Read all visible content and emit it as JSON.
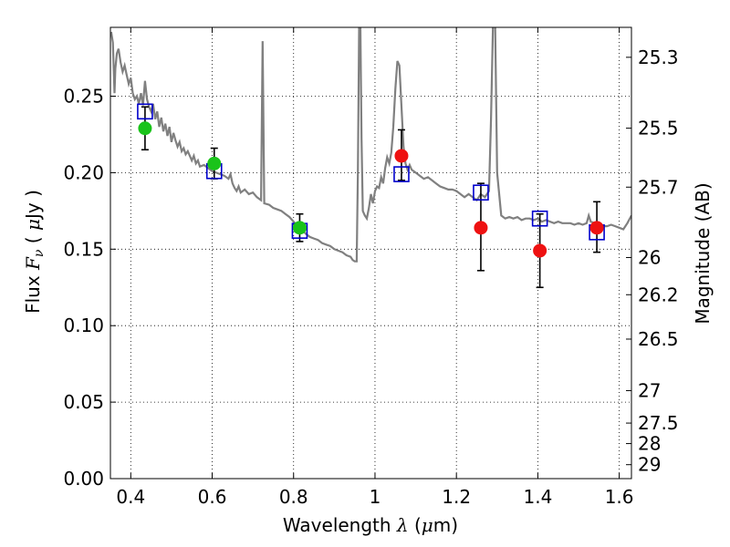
{
  "chart_data": {
    "type": "scatter",
    "title": "",
    "xlabel": {
      "prefix": "Wavelength  ",
      "symbol": "λ",
      "open": " (",
      "unit_symbol": "μ",
      "unit": "m",
      "close": ")"
    },
    "ylabel": {
      "prefix": "Flux  ",
      "symbol": "F",
      "subscript": "ν",
      "open": "  ( ",
      "unit_symbol": "μ",
      "unit": "Jy",
      "close": " )"
    },
    "y2label": "Magnitude (AB)",
    "xlim": [
      0.35,
      1.63
    ],
    "ylim": [
      0.0,
      0.295
    ],
    "xticks": [
      0.4,
      0.6,
      0.8,
      1.0,
      1.2,
      1.4,
      1.6
    ],
    "xtick_labels": [
      "0.4",
      "0.6",
      "0.8",
      "1",
      "1.2",
      "1.4",
      "1.6"
    ],
    "yticks": [
      0.0,
      0.05,
      0.1,
      0.15,
      0.2,
      0.25
    ],
    "ytick_labels": [
      "0.00",
      "0.05",
      "0.10",
      "0.15",
      "0.20",
      "0.25"
    ],
    "mag_ticks": [
      25.3,
      25.5,
      25.7,
      26,
      26.2,
      26.5,
      27,
      27.5,
      28,
      29
    ],
    "mag_tick_labels": [
      "25.3",
      "25.5",
      "25.7",
      "26",
      "26.2",
      "26.5",
      "27",
      "27.5",
      "28",
      "29"
    ],
    "grid": true,
    "colors": {
      "spectrum": "#808080",
      "model": "#0000cc",
      "green": "#1ac31a",
      "red": "#ee1111",
      "errorbar": "#000000"
    },
    "series": [
      {
        "kind": "spectrum",
        "points": [
          [
            0.352,
            0.292
          ],
          [
            0.356,
            0.285
          ],
          [
            0.36,
            0.252
          ],
          [
            0.362,
            0.268
          ],
          [
            0.366,
            0.278
          ],
          [
            0.37,
            0.281
          ],
          [
            0.375,
            0.272
          ],
          [
            0.38,
            0.266
          ],
          [
            0.385,
            0.27
          ],
          [
            0.39,
            0.264
          ],
          [
            0.395,
            0.258
          ],
          [
            0.4,
            0.262
          ],
          [
            0.405,
            0.252
          ],
          [
            0.41,
            0.248
          ],
          [
            0.415,
            0.25
          ],
          [
            0.42,
            0.245
          ],
          [
            0.425,
            0.252
          ],
          [
            0.43,
            0.244
          ],
          [
            0.435,
            0.26
          ],
          [
            0.44,
            0.248
          ],
          [
            0.445,
            0.243
          ],
          [
            0.45,
            0.24
          ],
          [
            0.455,
            0.245
          ],
          [
            0.46,
            0.235
          ],
          [
            0.465,
            0.24
          ],
          [
            0.47,
            0.23
          ],
          [
            0.475,
            0.236
          ],
          [
            0.48,
            0.227
          ],
          [
            0.485,
            0.232
          ],
          [
            0.49,
            0.224
          ],
          [
            0.495,
            0.23
          ],
          [
            0.5,
            0.22
          ],
          [
            0.505,
            0.226
          ],
          [
            0.51,
            0.221
          ],
          [
            0.515,
            0.217
          ],
          [
            0.52,
            0.22
          ],
          [
            0.525,
            0.214
          ],
          [
            0.53,
            0.216
          ],
          [
            0.535,
            0.212
          ],
          [
            0.54,
            0.214
          ],
          [
            0.545,
            0.211
          ],
          [
            0.55,
            0.208
          ],
          [
            0.555,
            0.211
          ],
          [
            0.56,
            0.206
          ],
          [
            0.565,
            0.208
          ],
          [
            0.57,
            0.204
          ],
          [
            0.58,
            0.205
          ],
          [
            0.59,
            0.203
          ],
          [
            0.6,
            0.201
          ],
          [
            0.61,
            0.2
          ],
          [
            0.62,
            0.199
          ],
          [
            0.63,
            0.198
          ],
          [
            0.64,
            0.196
          ],
          [
            0.645,
            0.199
          ],
          [
            0.65,
            0.193
          ],
          [
            0.655,
            0.19
          ],
          [
            0.66,
            0.188
          ],
          [
            0.665,
            0.191
          ],
          [
            0.67,
            0.187
          ],
          [
            0.68,
            0.189
          ],
          [
            0.69,
            0.186
          ],
          [
            0.7,
            0.187
          ],
          [
            0.71,
            0.184
          ],
          [
            0.72,
            0.182
          ],
          [
            0.724,
            0.286
          ],
          [
            0.728,
            0.18
          ],
          [
            0.74,
            0.179
          ],
          [
            0.75,
            0.177
          ],
          [
            0.76,
            0.176
          ],
          [
            0.77,
            0.175
          ],
          [
            0.78,
            0.173
          ],
          [
            0.79,
            0.171
          ],
          [
            0.8,
            0.168
          ],
          [
            0.81,
            0.165
          ],
          [
            0.82,
            0.163
          ],
          [
            0.83,
            0.16
          ],
          [
            0.84,
            0.158
          ],
          [
            0.85,
            0.157
          ],
          [
            0.86,
            0.156
          ],
          [
            0.87,
            0.154
          ],
          [
            0.88,
            0.153
          ],
          [
            0.89,
            0.152
          ],
          [
            0.9,
            0.15
          ],
          [
            0.91,
            0.149
          ],
          [
            0.92,
            0.148
          ],
          [
            0.93,
            0.146
          ],
          [
            0.94,
            0.145
          ],
          [
            0.945,
            0.143
          ],
          [
            0.95,
            0.142
          ],
          [
            0.955,
            0.142
          ],
          [
            0.958,
            0.2
          ],
          [
            0.961,
            0.298
          ],
          [
            0.964,
            0.298
          ],
          [
            0.967,
            0.222
          ],
          [
            0.97,
            0.175
          ],
          [
            0.975,
            0.172
          ],
          [
            0.98,
            0.17
          ],
          [
            0.985,
            0.177
          ],
          [
            0.99,
            0.186
          ],
          [
            0.995,
            0.18
          ],
          [
            1.0,
            0.188
          ],
          [
            1.005,
            0.191
          ],
          [
            1.01,
            0.19
          ],
          [
            1.015,
            0.197
          ],
          [
            1.02,
            0.193
          ],
          [
            1.025,
            0.203
          ],
          [
            1.03,
            0.21
          ],
          [
            1.035,
            0.206
          ],
          [
            1.04,
            0.213
          ],
          [
            1.045,
            0.23
          ],
          [
            1.05,
            0.255
          ],
          [
            1.055,
            0.273
          ],
          [
            1.06,
            0.27
          ],
          [
            1.065,
            0.243
          ],
          [
            1.07,
            0.217
          ],
          [
            1.075,
            0.206
          ],
          [
            1.08,
            0.202
          ],
          [
            1.085,
            0.205
          ],
          [
            1.09,
            0.202
          ],
          [
            1.1,
            0.2
          ],
          [
            1.11,
            0.198
          ],
          [
            1.12,
            0.196
          ],
          [
            1.13,
            0.197
          ],
          [
            1.14,
            0.195
          ],
          [
            1.15,
            0.193
          ],
          [
            1.16,
            0.191
          ],
          [
            1.17,
            0.19
          ],
          [
            1.18,
            0.189
          ],
          [
            1.19,
            0.189
          ],
          [
            1.2,
            0.188
          ],
          [
            1.21,
            0.186
          ],
          [
            1.22,
            0.184
          ],
          [
            1.23,
            0.186
          ],
          [
            1.24,
            0.184
          ],
          [
            1.25,
            0.182
          ],
          [
            1.26,
            0.186
          ],
          [
            1.27,
            0.184
          ],
          [
            1.28,
            0.188
          ],
          [
            1.285,
            0.235
          ],
          [
            1.29,
            0.298
          ],
          [
            1.295,
            0.298
          ],
          [
            1.3,
            0.2
          ],
          [
            1.31,
            0.172
          ],
          [
            1.32,
            0.17
          ],
          [
            1.33,
            0.171
          ],
          [
            1.34,
            0.17
          ],
          [
            1.35,
            0.171
          ],
          [
            1.36,
            0.169
          ],
          [
            1.37,
            0.17
          ],
          [
            1.38,
            0.17
          ],
          [
            1.39,
            0.169
          ],
          [
            1.4,
            0.17
          ],
          [
            1.41,
            0.168
          ],
          [
            1.42,
            0.169
          ],
          [
            1.43,
            0.168
          ],
          [
            1.44,
            0.167
          ],
          [
            1.45,
            0.168
          ],
          [
            1.46,
            0.167
          ],
          [
            1.47,
            0.167
          ],
          [
            1.48,
            0.167
          ],
          [
            1.49,
            0.166
          ],
          [
            1.5,
            0.167
          ],
          [
            1.51,
            0.166
          ],
          [
            1.52,
            0.167
          ],
          [
            1.525,
            0.172
          ],
          [
            1.53,
            0.168
          ],
          [
            1.54,
            0.167
          ],
          [
            1.55,
            0.166
          ],
          [
            1.56,
            0.165
          ],
          [
            1.57,
            0.165
          ],
          [
            1.58,
            0.166
          ],
          [
            1.59,
            0.165
          ],
          [
            1.6,
            0.164
          ],
          [
            1.61,
            0.163
          ],
          [
            1.62,
            0.167
          ],
          [
            1.63,
            0.172
          ]
        ]
      },
      {
        "kind": "model",
        "marker": "open-square",
        "points": [
          [
            0.435,
            0.24
          ],
          [
            0.605,
            0.201
          ],
          [
            0.815,
            0.162
          ],
          [
            1.065,
            0.199
          ],
          [
            1.26,
            0.187
          ],
          [
            1.405,
            0.17
          ],
          [
            1.545,
            0.161
          ]
        ]
      },
      {
        "kind": "green",
        "marker": "filled-circle",
        "points": [
          {
            "x": 0.435,
            "y": 0.229,
            "lo": 0.215,
            "hi": 0.243
          },
          {
            "x": 0.605,
            "y": 0.206,
            "lo": 0.196,
            "hi": 0.216
          },
          {
            "x": 0.815,
            "y": 0.164,
            "lo": 0.155,
            "hi": 0.173
          }
        ]
      },
      {
        "kind": "red",
        "marker": "filled-circle",
        "points": [
          {
            "x": 1.065,
            "y": 0.211,
            "lo": 0.195,
            "hi": 0.228
          },
          {
            "x": 1.26,
            "y": 0.164,
            "lo": 0.136,
            "hi": 0.193
          },
          {
            "x": 1.405,
            "y": 0.149,
            "lo": 0.125,
            "hi": 0.173
          },
          {
            "x": 1.545,
            "y": 0.164,
            "lo": 0.148,
            "hi": 0.181
          }
        ]
      }
    ]
  }
}
